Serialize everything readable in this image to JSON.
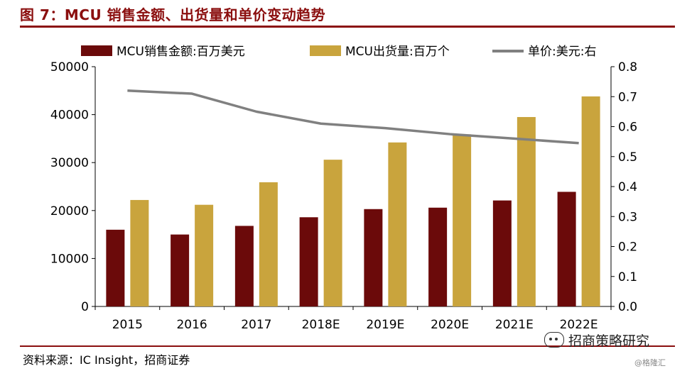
{
  "figure": {
    "title": "图 7：MCU 销售金额、出货量和单价变动趋势",
    "source": "资料来源：IC Insight，招商证券",
    "watermark_main": "招商策略研究",
    "watermark_sub": "@格隆汇"
  },
  "colors": {
    "sales": "#6b0a0a",
    "shipments": "#c9a43d",
    "price": "#808080",
    "accent": "#8b0f0f"
  },
  "chart_data": {
    "type": "bar",
    "categories": [
      "2015",
      "2016",
      "2017",
      "2018E",
      "2019E",
      "2020E",
      "2021E",
      "2022E"
    ],
    "series": [
      {
        "name": "MCU销售金额:百万美元",
        "type": "bar",
        "axis": "left",
        "values": [
          16000,
          15000,
          16800,
          18600,
          20300,
          20600,
          22100,
          23900
        ]
      },
      {
        "name": "MCU出货量:百万个",
        "type": "bar",
        "axis": "left",
        "values": [
          22200,
          21200,
          25900,
          30600,
          34200,
          35900,
          39500,
          43800
        ]
      },
      {
        "name": "单价:美元:右",
        "type": "line",
        "axis": "right",
        "values": [
          0.72,
          0.71,
          0.65,
          0.61,
          0.595,
          0.575,
          0.56,
          0.545
        ]
      }
    ],
    "y_left": {
      "min": 0,
      "max": 50000,
      "ticks": [
        "0",
        "10000",
        "20000",
        "30000",
        "40000",
        "50000"
      ]
    },
    "y_right": {
      "min": 0,
      "max": 0.8,
      "ticks": [
        "0.0",
        "0.1",
        "0.2",
        "0.3",
        "0.4",
        "0.5",
        "0.6",
        "0.7",
        "0.8"
      ]
    },
    "grid": false,
    "legend_position": "top"
  }
}
